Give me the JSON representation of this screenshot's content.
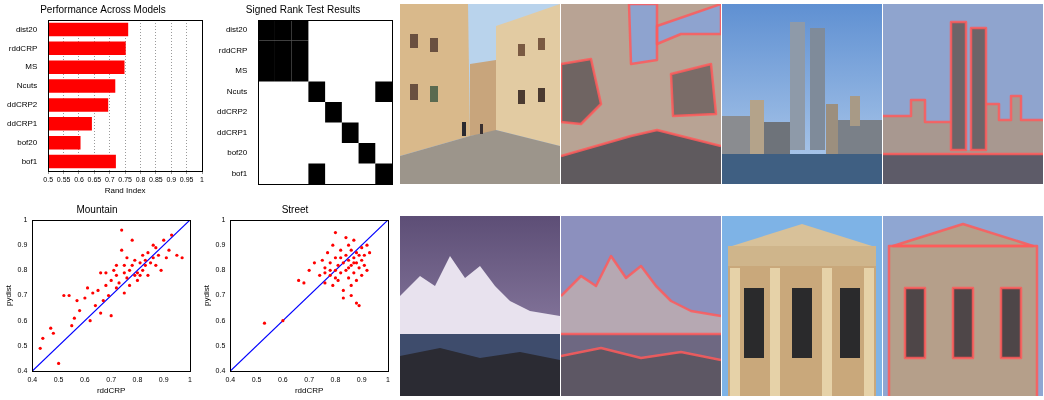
{
  "chart_data": [
    {
      "type": "bar",
      "orientation": "horizontal",
      "title": "Performance Across Models",
      "x_label": "Rand Index",
      "categories": [
        "dist20",
        "rddCRP",
        "MS",
        "Ncuts",
        "ddCRP2",
        "ddCRP1",
        "bof20",
        "bof1"
      ],
      "values": [
        0.76,
        0.752,
        0.748,
        0.718,
        0.695,
        0.642,
        0.605,
        0.72
      ],
      "color": "#ff0000",
      "xlim": [
        0.5,
        1
      ],
      "xticks": [
        0.5,
        0.55,
        0.6,
        0.65,
        0.7,
        0.75,
        0.8,
        0.85,
        0.9,
        0.95,
        1
      ],
      "grid": true
    },
    {
      "type": "heatmap",
      "title": "Signed Rank Test Results",
      "categories": [
        "dist20",
        "rddCRP",
        "MS",
        "Ncuts",
        "ddCRP2",
        "ddCRP1",
        "bof20",
        "bof1"
      ],
      "cells": [
        [
          1,
          1,
          1,
          0,
          0,
          0,
          0,
          0
        ],
        [
          1,
          1,
          1,
          0,
          0,
          0,
          0,
          0
        ],
        [
          1,
          1,
          1,
          0,
          0,
          0,
          0,
          0
        ],
        [
          0,
          0,
          0,
          1,
          0,
          0,
          0,
          1
        ],
        [
          0,
          0,
          0,
          0,
          1,
          0,
          0,
          0
        ],
        [
          0,
          0,
          0,
          0,
          0,
          1,
          0,
          0
        ],
        [
          0,
          0,
          0,
          0,
          0,
          0,
          1,
          0
        ],
        [
          0,
          0,
          0,
          1,
          0,
          0,
          0,
          1
        ]
      ],
      "color": "#000000",
      "tick_labels": "y"
    },
    {
      "type": "scatter",
      "title": "Mountain",
      "x_label": "rddCRP",
      "y_label": "pydist",
      "xlim": [
        0.4,
        1
      ],
      "ylim": [
        0.4,
        1
      ],
      "xticks": [
        0.4,
        0.5,
        0.6,
        0.7,
        0.8,
        0.9,
        1
      ],
      "yticks": [
        0.4,
        0.5,
        0.6,
        0.7,
        0.8,
        0.9,
        1
      ],
      "series": [
        {
          "type": "scatter",
          "color": "#ff0000",
          "marker": "dot",
          "x": [
            0.43,
            0.44,
            0.47,
            0.48,
            0.5,
            0.52,
            0.54,
            0.55,
            0.56,
            0.57,
            0.58,
            0.6,
            0.61,
            0.62,
            0.63,
            0.64,
            0.65,
            0.66,
            0.67,
            0.68,
            0.69,
            0.7,
            0.71,
            0.72,
            0.72,
            0.73,
            0.74,
            0.74,
            0.75,
            0.75,
            0.76,
            0.77,
            0.77,
            0.78,
            0.78,
            0.79,
            0.8,
            0.8,
            0.81,
            0.82,
            0.82,
            0.83,
            0.84,
            0.84,
            0.85,
            0.86,
            0.86,
            0.87,
            0.88,
            0.89,
            0.9,
            0.91,
            0.92,
            0.93,
            0.95,
            0.97,
            0.75,
            0.7,
            0.66,
            0.79,
            0.81,
            0.83,
            0.87,
            0.76,
            0.72,
            0.68
          ],
          "values": [
            0.49,
            0.53,
            0.57,
            0.55,
            0.43,
            0.7,
            0.7,
            0.58,
            0.61,
            0.68,
            0.64,
            0.69,
            0.73,
            0.6,
            0.71,
            0.66,
            0.72,
            0.79,
            0.68,
            0.74,
            0.7,
            0.76,
            0.8,
            0.73,
            0.78,
            0.75,
            0.88,
            0.96,
            0.82,
            0.79,
            0.77,
            0.8,
            0.74,
            0.82,
            0.92,
            0.84,
            0.79,
            0.76,
            0.83,
            0.86,
            0.8,
            0.84,
            0.78,
            0.87,
            0.83,
            0.9,
            0.85,
            0.82,
            0.86,
            0.8,
            0.92,
            0.85,
            0.88,
            0.94,
            0.86,
            0.85,
            0.71,
            0.62,
            0.63,
            0.78,
            0.78,
            0.82,
            0.89,
            0.85,
            0.82,
            0.79
          ]
        },
        {
          "type": "line",
          "color": "#0000ff",
          "line_style": "solid",
          "x": [
            0.4,
            1
          ],
          "values": [
            0.4,
            1
          ]
        }
      ]
    },
    {
      "type": "scatter",
      "title": "Street",
      "x_label": "rddCRP",
      "y_label": "pydist",
      "xlim": [
        0.4,
        1
      ],
      "ylim": [
        0.4,
        1
      ],
      "xticks": [
        0.4,
        0.5,
        0.6,
        0.7,
        0.8,
        0.9,
        1
      ],
      "yticks": [
        0.4,
        0.5,
        0.6,
        0.7,
        0.8,
        0.9,
        1
      ],
      "series": [
        {
          "type": "scatter",
          "color": "#ff0000",
          "marker": "dot",
          "x": [
            0.53,
            0.6,
            0.66,
            0.68,
            0.7,
            0.72,
            0.74,
            0.75,
            0.76,
            0.76,
            0.77,
            0.78,
            0.78,
            0.79,
            0.79,
            0.8,
            0.8,
            0.81,
            0.81,
            0.82,
            0.82,
            0.83,
            0.83,
            0.84,
            0.84,
            0.85,
            0.85,
            0.85,
            0.86,
            0.86,
            0.86,
            0.87,
            0.87,
            0.87,
            0.88,
            0.88,
            0.88,
            0.89,
            0.89,
            0.89,
            0.9,
            0.9,
            0.9,
            0.91,
            0.91,
            0.92,
            0.92,
            0.93,
            0.84,
            0.8,
            0.83,
            0.78,
            0.86,
            0.88,
            0.82,
            0.85,
            0.87,
            0.8,
            0.76
          ],
          "values": [
            0.59,
            0.6,
            0.76,
            0.75,
            0.8,
            0.83,
            0.78,
            0.84,
            0.75,
            0.81,
            0.87,
            0.78,
            0.83,
            0.9,
            0.74,
            0.8,
            0.85,
            0.82,
            0.76,
            0.88,
            0.79,
            0.83,
            0.72,
            0.86,
            0.8,
            0.9,
            0.77,
            0.84,
            0.82,
            0.88,
            0.7,
            0.79,
            0.85,
            0.92,
            0.83,
            0.76,
            0.87,
            0.81,
            0.86,
            0.66,
            0.84,
            0.78,
            0.89,
            0.82,
            0.86,
            0.8,
            0.9,
            0.87,
            0.93,
            0.95,
            0.69,
            0.8,
            0.74,
            0.67,
            0.85,
            0.81,
            0.83,
            0.77,
            0.79
          ]
        },
        {
          "type": "line",
          "color": "#0000ff",
          "line_style": "solid",
          "x": [
            0.4,
            1
          ],
          "values": [
            0.4,
            1
          ]
        }
      ]
    }
  ]
}
